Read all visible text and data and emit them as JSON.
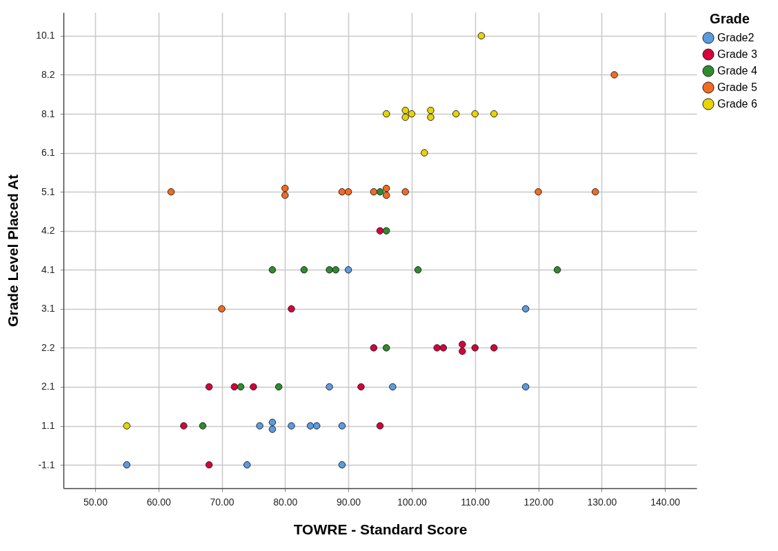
{
  "chart_data": {
    "type": "scatter",
    "orientation": "horizontal",
    "xlabel": "TOWRE - Standard Score",
    "ylabel": "Grade Level Placed At",
    "legend_title": "Grade",
    "legend": "top right",
    "grid": true,
    "marker": "circle",
    "xlim": [
      45,
      145
    ],
    "xticks": [
      {
        "value": 50,
        "label": "50.00"
      },
      {
        "value": 60,
        "label": "60.00"
      },
      {
        "value": 70,
        "label": "70.00"
      },
      {
        "value": 80,
        "label": "80.00"
      },
      {
        "value": 90,
        "label": "90.00"
      },
      {
        "value": 100,
        "label": "100.00"
      },
      {
        "value": 110,
        "label": "110.00"
      },
      {
        "value": 120,
        "label": "120.00"
      },
      {
        "value": 130,
        "label": "130.00"
      },
      {
        "value": 140,
        "label": "140.00"
      }
    ],
    "categories": [
      "10.1",
      "8.2",
      "8.1",
      "6.1",
      "5.1",
      "4.2",
      "4.1",
      "3.1",
      "2.2",
      "2.1",
      "1.1",
      "-1.1"
    ],
    "series": [
      {
        "name": "Grade2",
        "color": "#5b9bdf",
        "x": [
          "-1.1",
          "-1.1",
          "-1.1",
          "1.1",
          "1.1",
          "1.1",
          "1.1",
          "1.1",
          "1.1",
          "1.1",
          "2.1",
          "2.1",
          "2.1",
          "3.1",
          "4.1"
        ],
        "values": [
          55,
          74,
          89,
          76,
          78,
          78,
          81,
          84,
          85,
          89,
          87,
          97,
          118,
          118,
          90
        ]
      },
      {
        "name": "Grade 3",
        "color": "#d6003b",
        "x": [
          "-1.1",
          "1.1",
          "1.1",
          "2.1",
          "2.1",
          "2.1",
          "2.1",
          "2.2",
          "2.2",
          "2.2",
          "2.2",
          "2.2",
          "2.2",
          "2.2",
          "3.1",
          "4.2"
        ],
        "values": [
          68,
          64,
          95,
          68,
          72,
          75,
          92,
          94,
          104,
          105,
          108,
          108,
          110,
          113,
          81,
          95
        ]
      },
      {
        "name": "Grade 4",
        "color": "#2e8b2e",
        "x": [
          "1.1",
          "2.1",
          "2.1",
          "2.2",
          "4.1",
          "4.1",
          "4.1",
          "4.1",
          "4.1",
          "4.1",
          "4.2",
          "5.1"
        ],
        "values": [
          67,
          73,
          79,
          96,
          78,
          83,
          87,
          88,
          101,
          123,
          96,
          95
        ]
      },
      {
        "name": "Grade 5",
        "color": "#f26b21",
        "x": [
          "3.1",
          "5.1",
          "5.1",
          "5.1",
          "5.1",
          "5.1",
          "5.1",
          "5.1",
          "5.1",
          "5.1",
          "5.1",
          "5.1",
          "8.2"
        ],
        "values": [
          70,
          62,
          80,
          80,
          89,
          90,
          94,
          96,
          96,
          99,
          120,
          129,
          132
        ]
      },
      {
        "name": "Grade 6",
        "color": "#e8d400",
        "x": [
          "1.1",
          "6.1",
          "8.1",
          "8.1",
          "8.1",
          "8.1",
          "8.1",
          "8.1",
          "8.1",
          "8.1",
          "8.1",
          "10.1"
        ],
        "values": [
          55,
          102,
          96,
          99,
          99,
          100,
          103,
          103,
          107,
          110,
          113,
          111
        ]
      }
    ]
  }
}
